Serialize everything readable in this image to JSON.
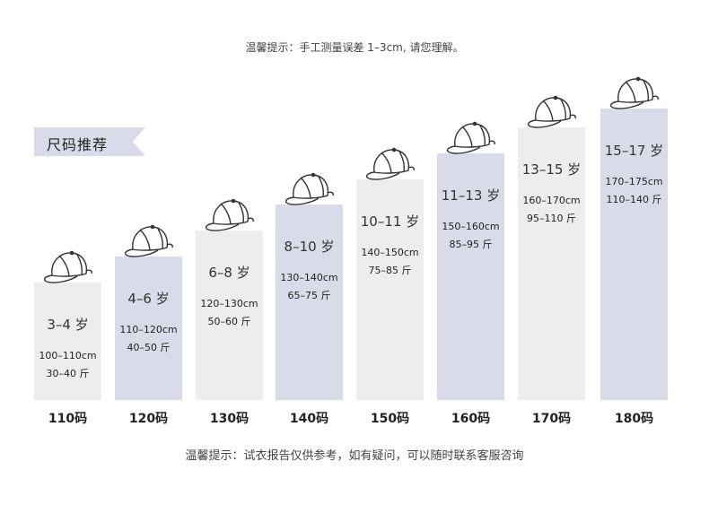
{
  "notice_top": "温馨提示：手工测量误差 1–3cm, 请您理解。",
  "tag_label": "尺码推荐",
  "notice_bottom": "温馨提示：试衣报告仅供参考，如有疑问，可以随时联系客服咨询",
  "colors": {
    "gray": "#efedeb",
    "blue": "#d9dce8",
    "tag": "#d9dce8"
  },
  "columns": [
    {
      "size": "110码",
      "age": "3–4 岁",
      "height": "100–110cm",
      "weight": "30–40 斤",
      "color": "gray"
    },
    {
      "size": "120码",
      "age": "4–6 岁",
      "height": "110–120cm",
      "weight": "40–50 斤",
      "color": "blue"
    },
    {
      "size": "130码",
      "age": "6–8 岁",
      "height": "120–130cm",
      "weight": "50–60 斤",
      "color": "gray"
    },
    {
      "size": "140码",
      "age": "8–10 岁",
      "height": "130–140cm",
      "weight": "65–75 斤",
      "color": "blue"
    },
    {
      "size": "150码",
      "age": "10–11 岁",
      "height": "140–150cm",
      "weight": "75–85 斤",
      "color": "gray"
    },
    {
      "size": "160码",
      "age": "11–13 岁",
      "height": "150–160cm",
      "weight": "85–95 斤",
      "color": "blue"
    },
    {
      "size": "170码",
      "age": "13–15 岁",
      "height": "160–170cm",
      "weight": "95–110 斤",
      "color": "gray"
    },
    {
      "size": "180码",
      "age": "15–17 岁",
      "height": "170–175cm",
      "weight": "110–140 斤",
      "color": "blue"
    }
  ]
}
